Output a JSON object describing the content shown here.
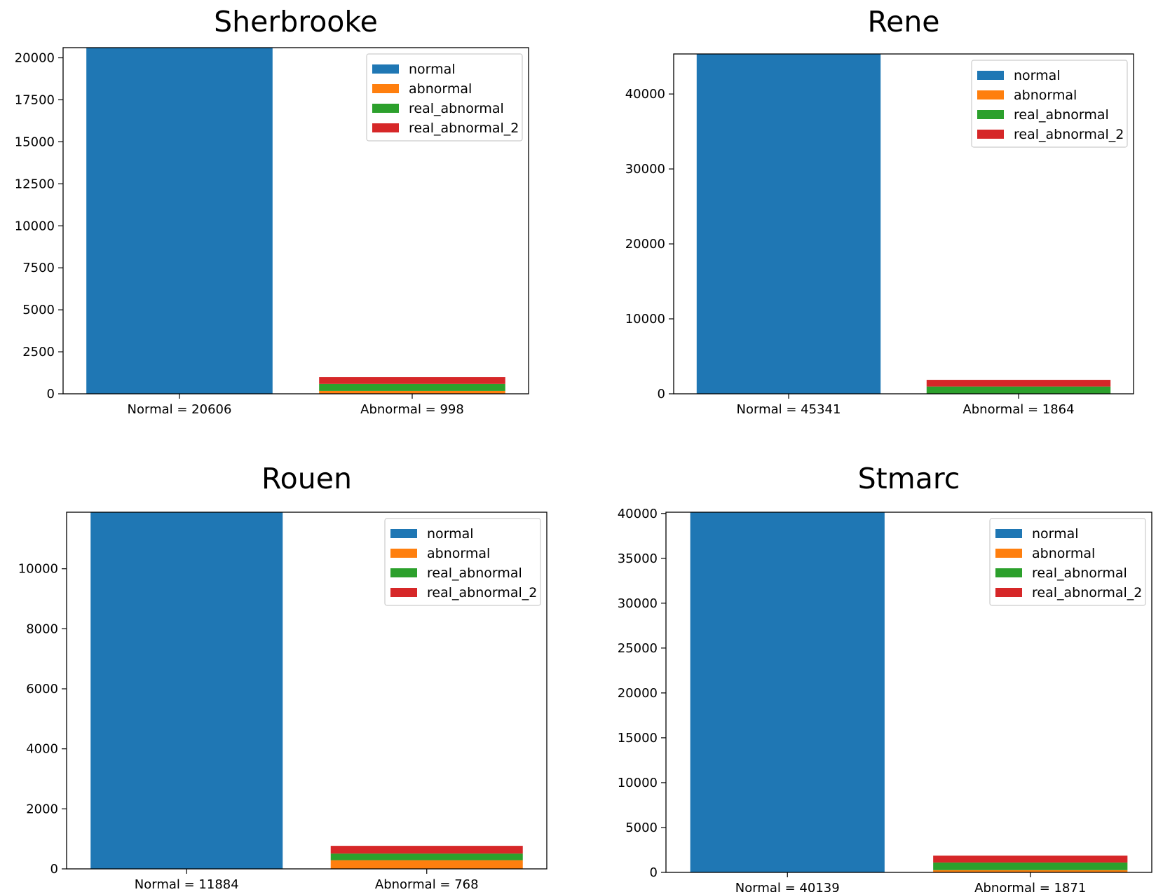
{
  "colors": {
    "normal": "#1f77b4",
    "abnormal": "#ff7f0e",
    "real_abnormal": "#2ca02c",
    "real_abnormal_2": "#d62728"
  },
  "legend": [
    "normal",
    "abnormal",
    "real_abnormal",
    "real_abnormal_2"
  ],
  "chart_data": [
    {
      "type": "bar",
      "stacked": true,
      "title": "Sherbrooke",
      "categories": [
        "Normal = 20606",
        "Abnormal = 998"
      ],
      "series": [
        {
          "name": "normal",
          "values": [
            20606,
            0
          ]
        },
        {
          "name": "abnormal",
          "values": [
            0,
            170
          ]
        },
        {
          "name": "real_abnormal",
          "values": [
            0,
            420
          ]
        },
        {
          "name": "real_abnormal_2",
          "values": [
            0,
            408
          ]
        }
      ],
      "ylim": [
        0,
        20606
      ],
      "yticks": [
        0,
        2500,
        5000,
        7500,
        10000,
        12500,
        15000,
        17500,
        20000
      ],
      "legend_position": "upper right"
    },
    {
      "type": "bar",
      "stacked": true,
      "title": "Rene",
      "categories": [
        "Normal = 45341",
        "Abnormal = 1864"
      ],
      "series": [
        {
          "name": "normal",
          "values": [
            45341,
            0
          ]
        },
        {
          "name": "abnormal",
          "values": [
            0,
            20
          ]
        },
        {
          "name": "real_abnormal",
          "values": [
            0,
            950
          ]
        },
        {
          "name": "real_abnormal_2",
          "values": [
            0,
            894
          ]
        }
      ],
      "ylim": [
        0,
        45341
      ],
      "yticks": [
        0,
        10000,
        20000,
        30000,
        40000
      ],
      "legend_position": "upper right"
    },
    {
      "type": "bar",
      "stacked": true,
      "title": "Rouen",
      "categories": [
        "Normal = 11884",
        "Abnormal = 768"
      ],
      "series": [
        {
          "name": "normal",
          "values": [
            11884,
            0
          ]
        },
        {
          "name": "abnormal",
          "values": [
            0,
            290
          ]
        },
        {
          "name": "real_abnormal",
          "values": [
            0,
            220
          ]
        },
        {
          "name": "real_abnormal_2",
          "values": [
            0,
            258
          ]
        }
      ],
      "ylim": [
        0,
        11884
      ],
      "yticks": [
        0,
        2000,
        4000,
        6000,
        8000,
        10000
      ],
      "legend_position": "upper right"
    },
    {
      "type": "bar",
      "stacked": true,
      "title": "Stmarc",
      "categories": [
        "Normal = 40139",
        "Abnormal = 1871"
      ],
      "series": [
        {
          "name": "normal",
          "values": [
            40139,
            0
          ]
        },
        {
          "name": "abnormal",
          "values": [
            0,
            250
          ]
        },
        {
          "name": "real_abnormal",
          "values": [
            0,
            850
          ]
        },
        {
          "name": "real_abnormal_2",
          "values": [
            0,
            771
          ]
        }
      ],
      "ylim": [
        0,
        40139
      ],
      "yticks": [
        0,
        5000,
        10000,
        15000,
        20000,
        25000,
        30000,
        35000,
        40000
      ],
      "legend_position": "upper right"
    }
  ]
}
